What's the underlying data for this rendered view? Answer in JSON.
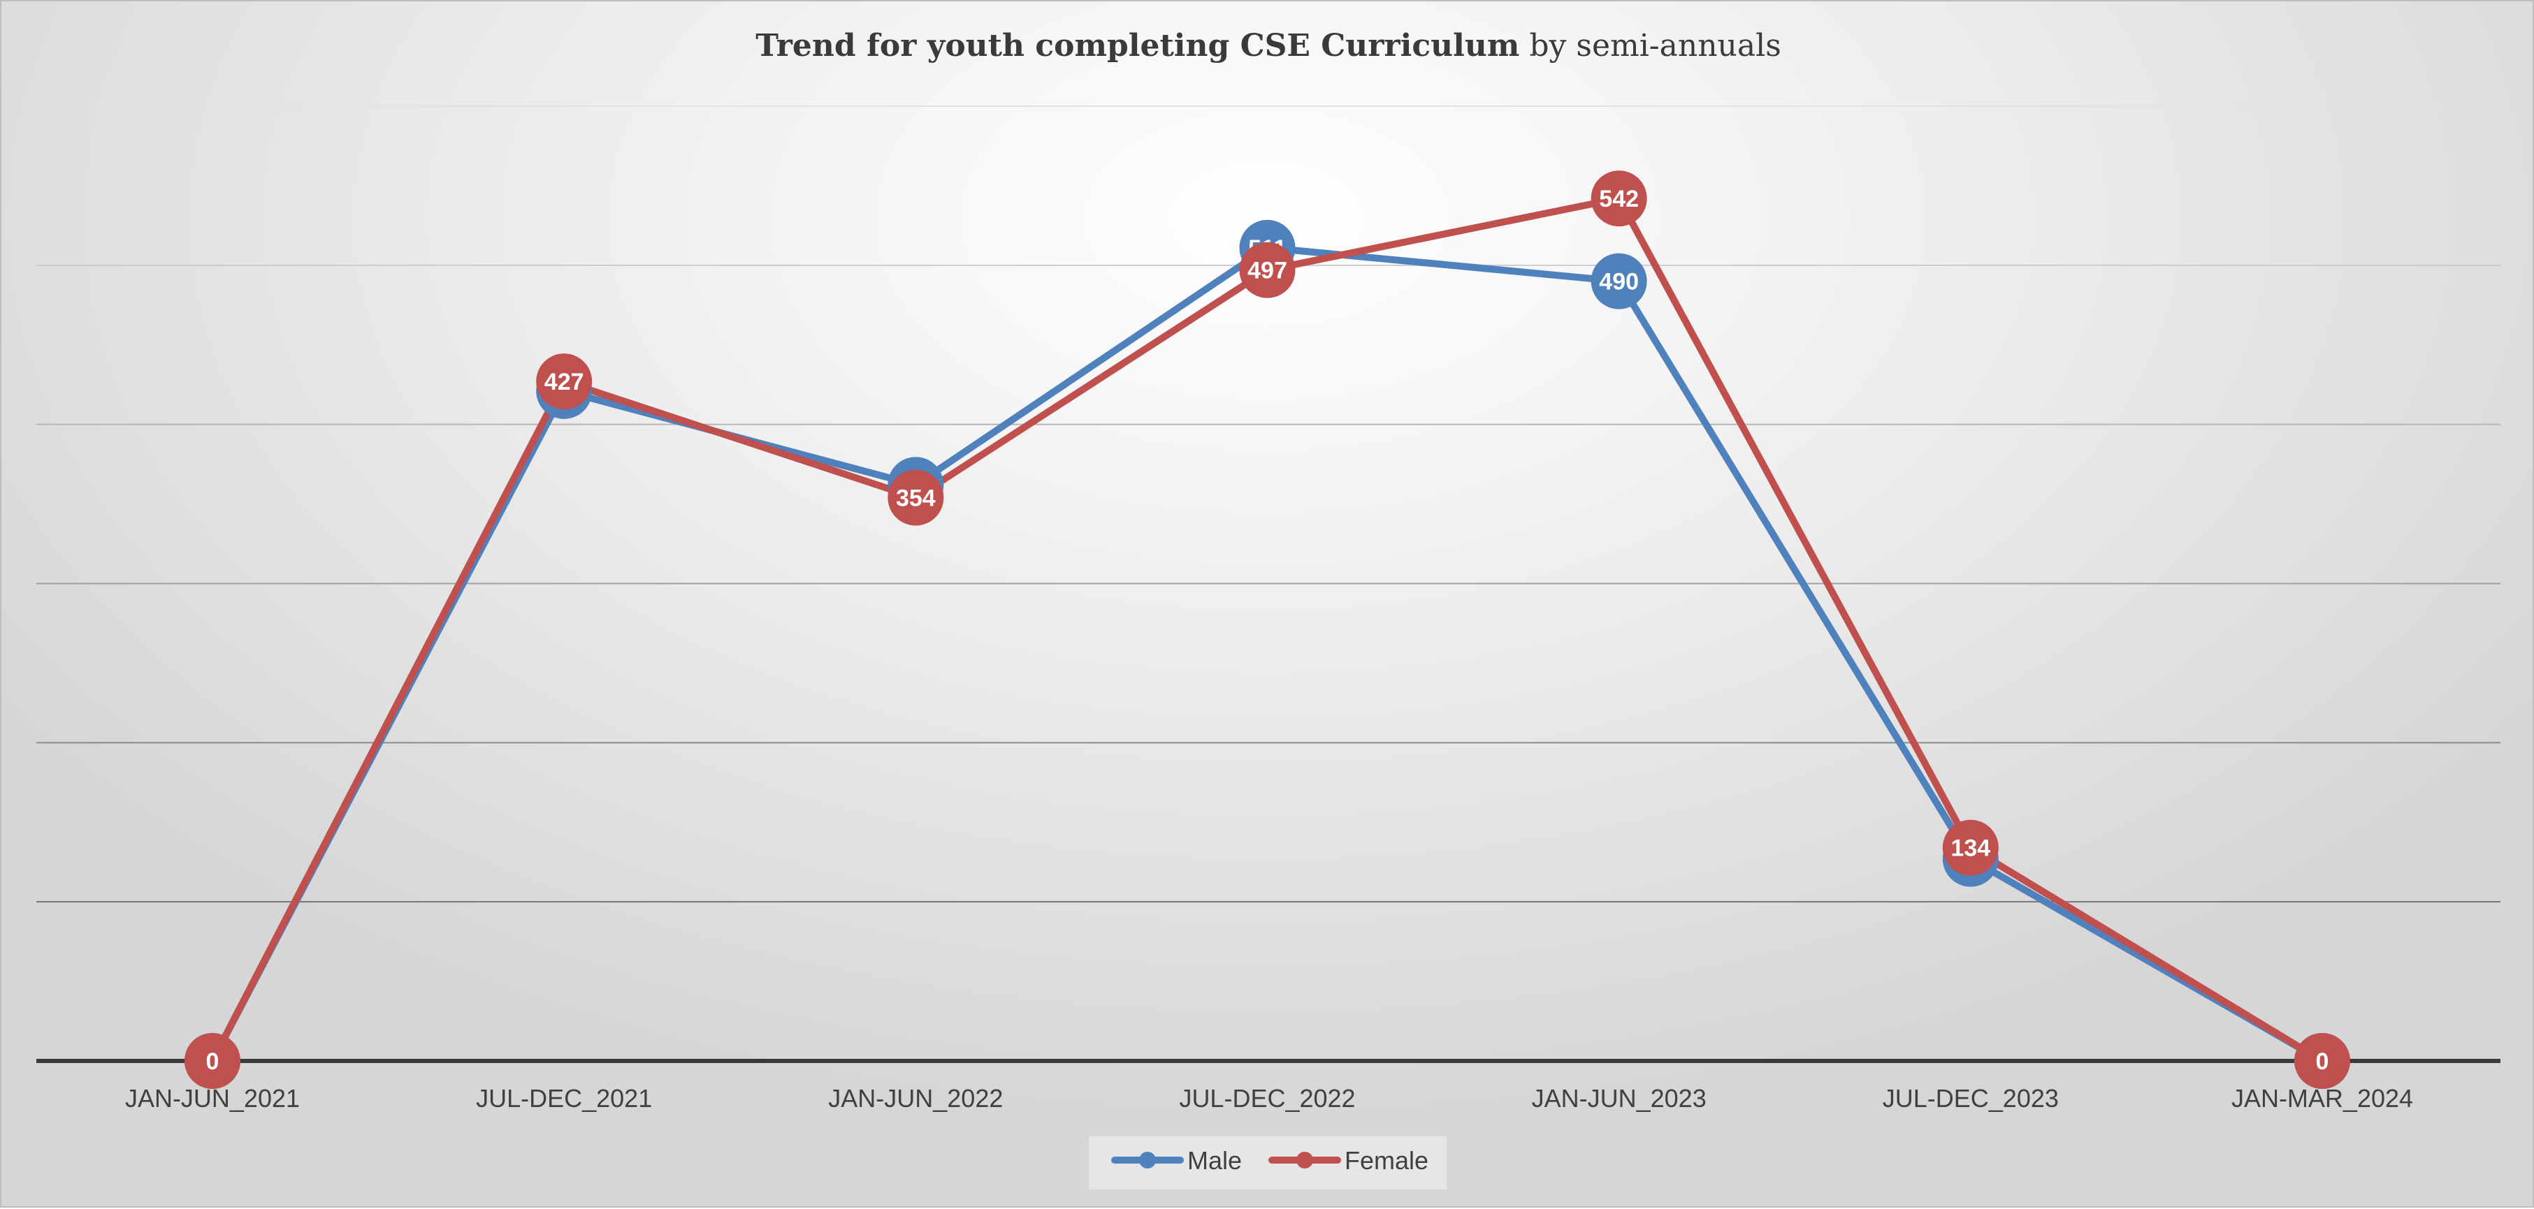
{
  "chart_data": {
    "type": "line",
    "title": "Trend for youth completing CSE Curriculum",
    "title_suffix": " by semi-annuals",
    "categories": [
      "JAN-JUN_2021",
      "JUL-DEC_2021",
      "JAN-JUN_2022",
      "JUL-DEC_2022",
      "JAN-JUN_2023",
      "JUL-DEC_2023",
      "JAN-MAR_2024"
    ],
    "series": [
      {
        "name": "Male",
        "color": "#4f81bd",
        "values": [
          0,
          421,
          362,
          511,
          490,
          127,
          0
        ]
      },
      {
        "name": "Female",
        "color": "#c0504d",
        "values": [
          0,
          427,
          354,
          497,
          542,
          134,
          0
        ]
      }
    ],
    "ylim": [
      0,
      600
    ],
    "y_gridlines": [
      100,
      200,
      300,
      400,
      500,
      600
    ],
    "y_tick_labels_shown": false,
    "grid": true,
    "legend_position": "bottom",
    "data_labels": true
  }
}
